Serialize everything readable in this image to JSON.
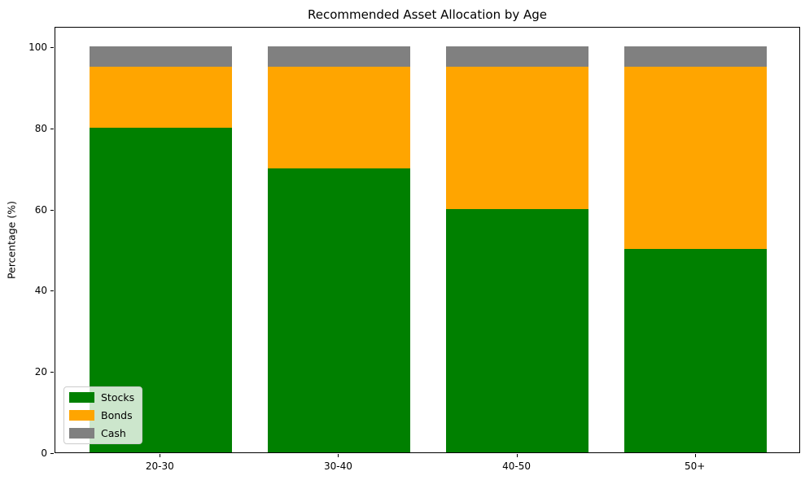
{
  "chart_data": {
    "type": "bar",
    "stacked": true,
    "title": "Recommended Asset Allocation by Age",
    "xlabel": "",
    "ylabel": "Percentage (%)",
    "categories": [
      "20-30",
      "30-40",
      "40-50",
      "50+"
    ],
    "series": [
      {
        "name": "Stocks",
        "color": "#008000",
        "values": [
          80,
          70,
          60,
          50
        ]
      },
      {
        "name": "Bonds",
        "color": "#FFA500",
        "values": [
          15,
          25,
          35,
          45
        ]
      },
      {
        "name": "Cash",
        "color": "#808080",
        "values": [
          5,
          5,
          5,
          5
        ]
      }
    ],
    "yticks": [
      0,
      20,
      40,
      60,
      80,
      100
    ],
    "ylim": [
      0,
      105
    ],
    "grid": false,
    "legend_position": "lower left",
    "background_color": "#ffffff",
    "spine_color": "#000000"
  }
}
